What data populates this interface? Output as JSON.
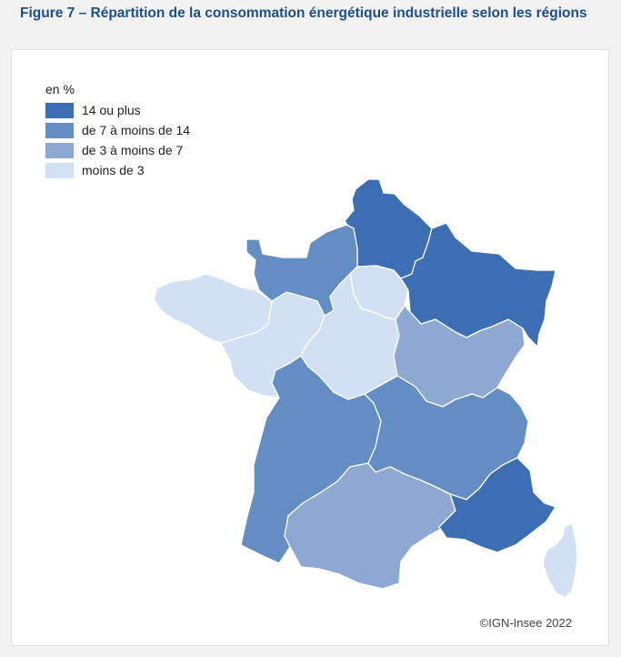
{
  "title": "Figure 7 – Répartition de la consommation énergétique industrielle selon les régions",
  "legend": {
    "title": "en %",
    "classes": [
      {
        "label": "14 ou plus",
        "color": "#3d6db3"
      },
      {
        "label": "de 7 à moins de 14",
        "color": "#648dc4"
      },
      {
        "label": "de 3 à moins de 7",
        "color": "#8da9d3"
      },
      {
        "label": "moins de 3",
        "color": "#d1e0f2"
      }
    ]
  },
  "regions": [
    {
      "id": "hauts-de-france",
      "class": 0
    },
    {
      "id": "normandie",
      "class": 1
    },
    {
      "id": "ile-de-france",
      "class": 3
    },
    {
      "id": "grand-est",
      "class": 0
    },
    {
      "id": "bretagne",
      "class": 3
    },
    {
      "id": "pays-de-la-loire",
      "class": 3
    },
    {
      "id": "centre-val-de-loire",
      "class": 3
    },
    {
      "id": "bourgogne-franche-comte",
      "class": 2
    },
    {
      "id": "nouvelle-aquitaine",
      "class": 1
    },
    {
      "id": "auvergne-rhone-alpes",
      "class": 1
    },
    {
      "id": "occitanie",
      "class": 2
    },
    {
      "id": "provence-alpes-cote-d-azur",
      "class": 0
    },
    {
      "id": "corse",
      "class": 3
    }
  ],
  "source": "©IGN-Insee 2022"
}
